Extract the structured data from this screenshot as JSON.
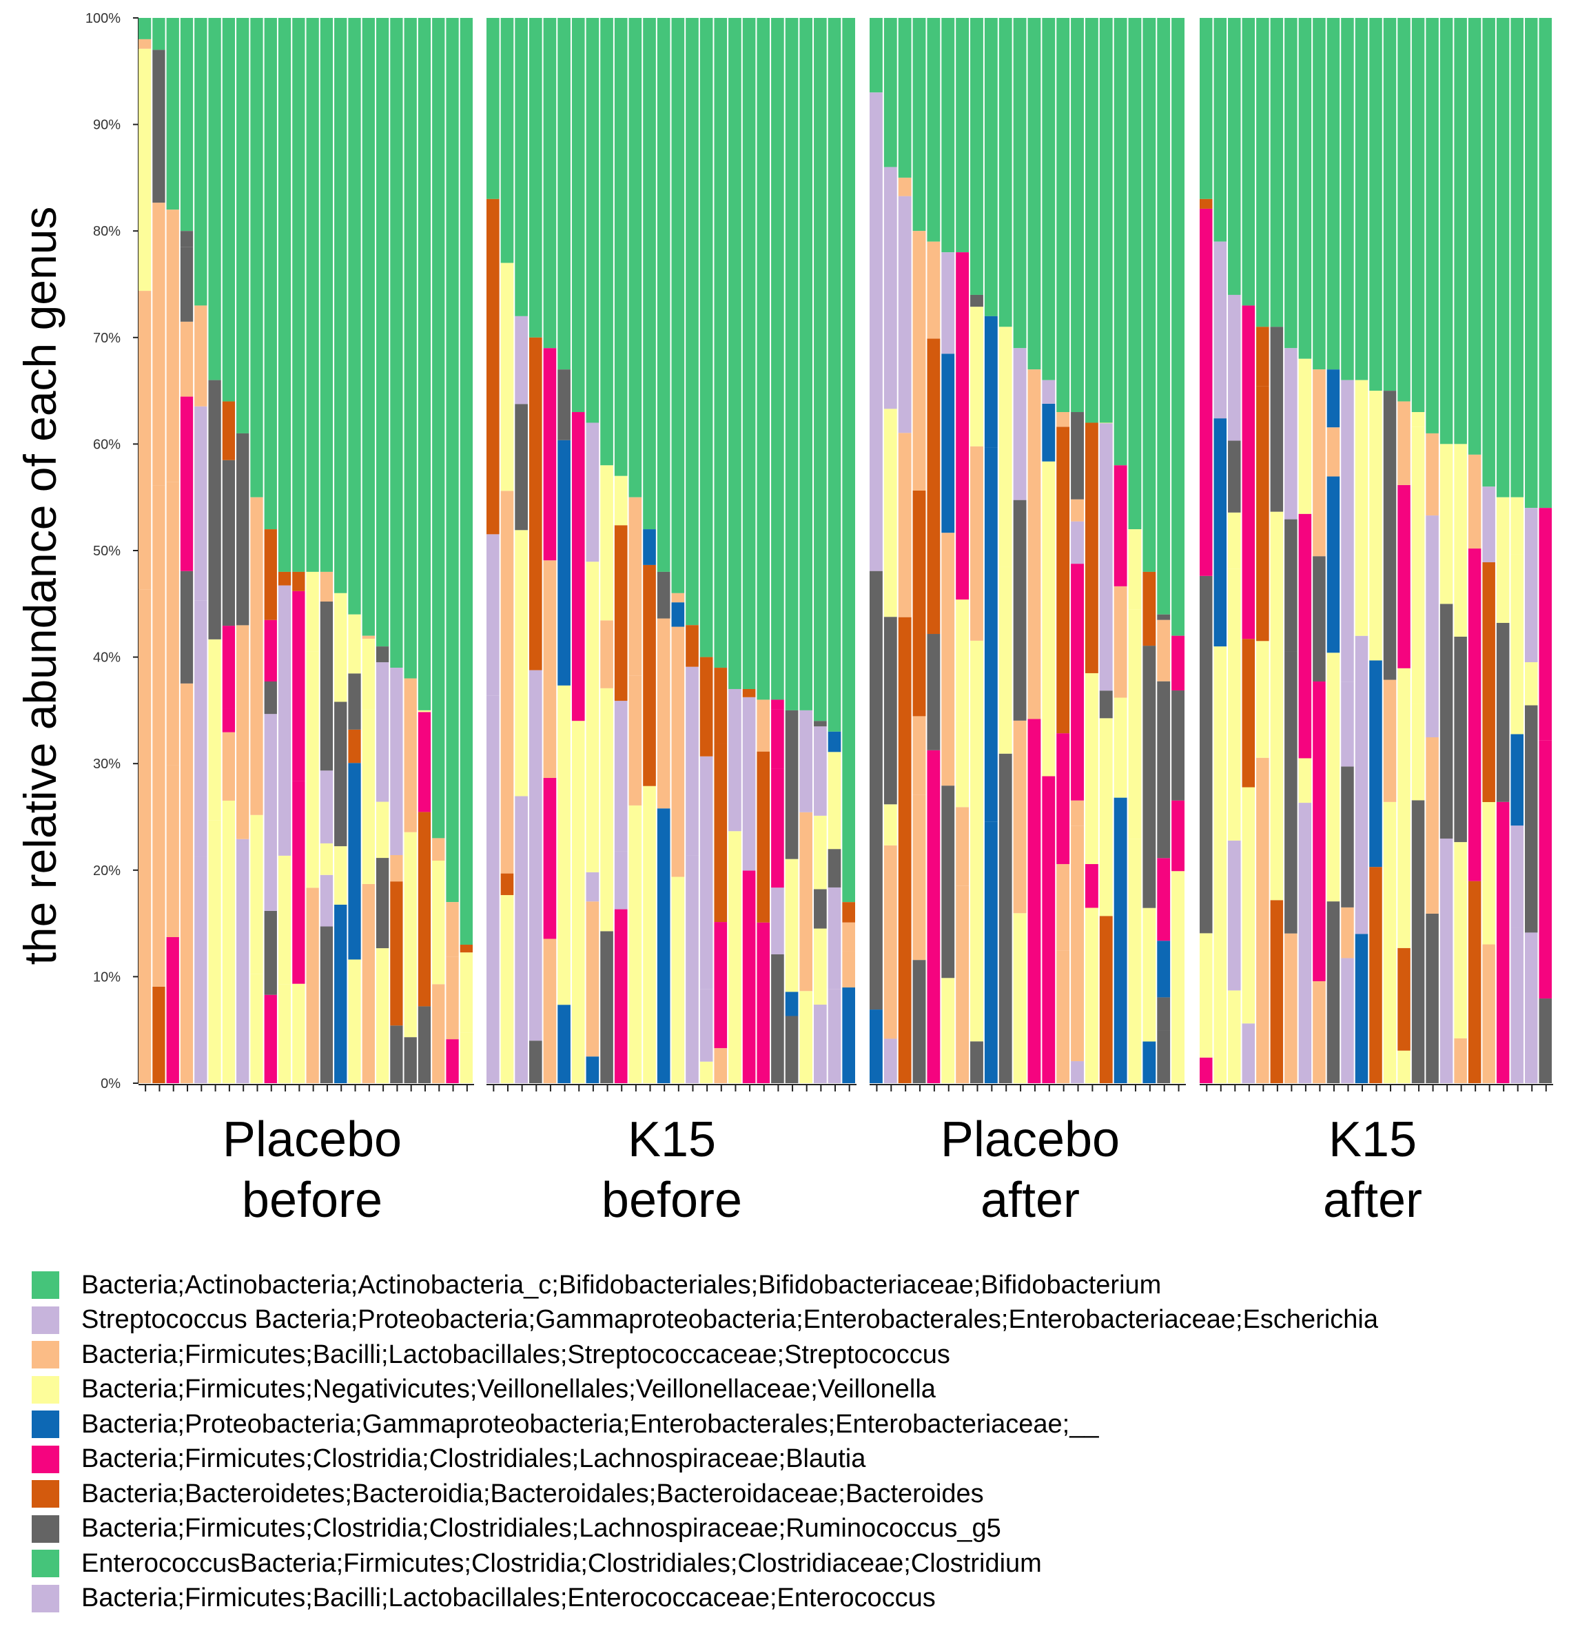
{
  "chart_data": {
    "type": "bar",
    "stacked": true,
    "normalized": true,
    "ylabel": "the relative abundance of each genus",
    "ytick_labels": [
      "0%",
      "10%",
      "20%",
      "30%",
      "40%",
      "50%",
      "60%",
      "70%",
      "80%",
      "90%",
      "100%"
    ],
    "ylim": [
      0,
      100
    ],
    "groups": [
      {
        "line1": "Placebo",
        "line2": "before",
        "samples": 24,
        "bifido_pct": [
          2,
          3,
          18,
          20,
          27,
          34,
          36,
          39,
          45,
          48,
          52,
          52,
          52,
          52,
          54,
          56,
          58,
          59,
          61,
          62,
          65,
          77,
          83,
          87
        ]
      },
      {
        "line1": "K15",
        "line2": "before",
        "samples": 26,
        "bifido_pct": [
          17,
          23,
          28,
          30,
          31,
          33,
          37,
          38,
          42,
          43,
          45,
          48,
          52,
          54,
          57,
          60,
          61,
          63,
          63,
          64,
          64,
          65,
          65,
          66,
          67,
          83
        ]
      },
      {
        "line1": "Placebo",
        "line2": "after",
        "samples": 22,
        "bifido_pct": [
          7,
          14,
          15,
          20,
          21,
          22,
          22,
          26,
          28,
          29,
          31,
          33,
          34,
          37,
          37,
          38,
          38,
          42,
          48,
          52,
          56,
          58
        ]
      },
      {
        "line1": "K15",
        "line2": "after",
        "samples": 25,
        "bifido_pct": [
          17,
          21,
          26,
          27,
          29,
          29,
          31,
          32,
          33,
          33,
          34,
          34,
          35,
          35,
          36,
          37,
          39,
          40,
          40,
          41,
          44,
          45,
          45,
          46,
          46
        ]
      }
    ],
    "legend": [
      {
        "label": "Bacteria;Actinobacteria;Actinobacteria_c;Bifidobacteriales;Bifidobacteriaceae;Bifidobacterium",
        "color": "#45c47a"
      },
      {
        "label": "Streptococcus Bacteria;Proteobacteria;Gammaproteobacteria;Enterobacterales;Enterobacteriaceae;Escherichia",
        "color": "#c7b4dc"
      },
      {
        "label": "Bacteria;Firmicutes;Bacilli;Lactobacillales;Streptococcaceae;Streptococcus",
        "color": "#fbbc86"
      },
      {
        "label": "Bacteria;Firmicutes;Negativicutes;Veillonellales;Veillonellaceae;Veillonella",
        "color": "#fdfd9a"
      },
      {
        "label": "Bacteria;Proteobacteria;Gammaproteobacteria;Enterobacterales;Enterobacteriaceae;__",
        "color": "#0d68b4"
      },
      {
        "label": "Bacteria;Firmicutes;Clostridia;Clostridiales;Lachnospiraceae;Blautia",
        "color": "#f5047f"
      },
      {
        "label": "Bacteria;Bacteroidetes;Bacteroidia;Bacteroidales;Bacteroidaceae;Bacteroides",
        "color": "#d35a0d"
      },
      {
        "label": "Bacteria;Firmicutes;Clostridia;Clostridiales;Lachnospiraceae;Ruminococcus_g5",
        "color": "#646464"
      },
      {
        "label": "EnterococcusBacteria;Firmicutes;Clostridia;Clostridiales;Clostridiaceae;Clostridium",
        "color": "#45c47a"
      },
      {
        "label": "Bacteria;Firmicutes;Bacilli;Lactobacillales;Enterococcaceae;Enterococcus",
        "color": "#c7b4dc"
      }
    ]
  }
}
